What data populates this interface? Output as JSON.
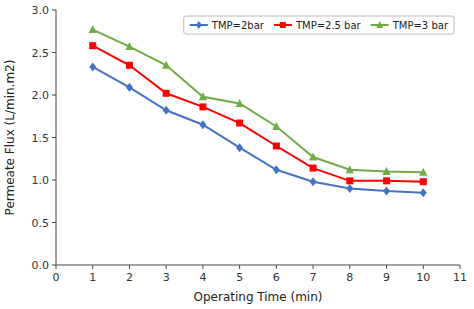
{
  "chart_data": {
    "type": "line",
    "x_label": "Operating Time (min)",
    "y_label": "Permeate Flux (L/min.m2)",
    "x": [
      1,
      2,
      3,
      4,
      5,
      6,
      7,
      8,
      9,
      10
    ],
    "series": [
      {
        "name": "TMP=2bar",
        "color": "#4472C4",
        "marker": "diamond",
        "values": [
          2.33,
          2.09,
          1.82,
          1.65,
          1.38,
          1.12,
          0.98,
          0.9,
          0.87,
          0.85
        ]
      },
      {
        "name": "TMP=2.5 bar",
        "color": "#FF0000",
        "marker": "square",
        "values": [
          2.58,
          2.35,
          2.02,
          1.86,
          1.67,
          1.4,
          1.14,
          0.99,
          0.99,
          0.98
        ]
      },
      {
        "name": "TMP=3 bar",
        "color": "#70AD47",
        "marker": "triangle",
        "values": [
          2.77,
          2.57,
          2.35,
          1.98,
          1.9,
          1.63,
          1.27,
          1.12,
          1.1,
          1.09
        ]
      }
    ],
    "xlim": [
      0,
      11
    ],
    "ylim": [
      0,
      3
    ],
    "xticks": [
      0,
      1,
      2,
      3,
      4,
      5,
      6,
      7,
      8,
      9,
      10,
      11
    ],
    "yticks": [
      {
        "value": 0,
        "label": "0.0"
      },
      0.5,
      {
        "value": 1.0,
        "label": "1.0"
      },
      1.5,
      {
        "value": 2.0,
        "label": "2.0"
      },
      2.5,
      {
        "value": 3.0,
        "label": "3.0"
      }
    ],
    "grid": false,
    "legend": "upper right"
  }
}
